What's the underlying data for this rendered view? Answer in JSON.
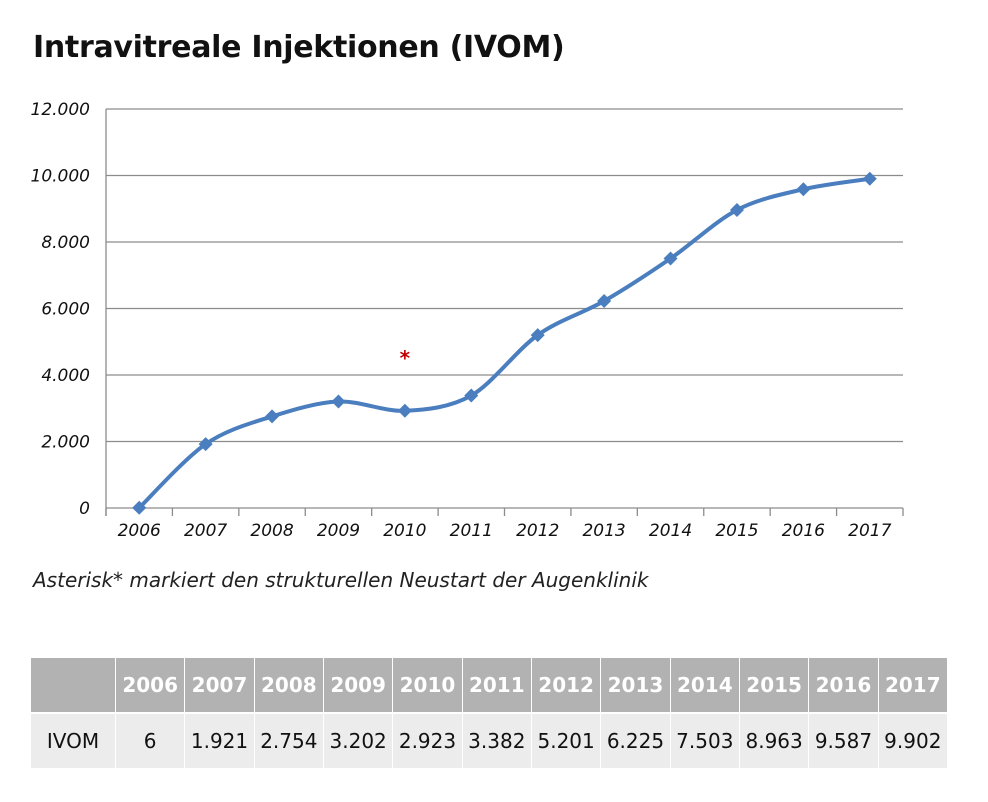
{
  "title": "Intravitreale Injektionen (IVOM)",
  "note": "Asterisk* markiert den strukturellen Neustart der Augenklinik",
  "colors": {
    "line": "#4a7ebf",
    "grid": "#8c8c8c",
    "asterisk": "#c00000",
    "table_header": "#b2b2b2",
    "table_row": "#ececec"
  },
  "chart_data": {
    "type": "line",
    "title": "Intravitreale Injektionen (IVOM)",
    "xlabel": "",
    "ylabel": "",
    "categories": [
      "2006",
      "2007",
      "2008",
      "2009",
      "2010",
      "2011",
      "2012",
      "2013",
      "2014",
      "2015",
      "2016",
      "2017"
    ],
    "series": [
      {
        "name": "IVOM",
        "values": [
          6,
          1921,
          2754,
          3202,
          2923,
          3382,
          5201,
          6225,
          7503,
          8963,
          9587,
          9902
        ]
      }
    ],
    "ylim": [
      0,
      12000
    ],
    "yticks": [
      0,
      2000,
      4000,
      6000,
      8000,
      10000,
      12000
    ],
    "ytick_labels": [
      "0",
      "2.000",
      "4.000",
      "6.000",
      "8.000",
      "10.000",
      "12.000"
    ],
    "grid": true,
    "marker": "diamond",
    "annotations": [
      {
        "text": "*",
        "category": "2010",
        "y": 4300
      }
    ]
  },
  "table": {
    "corner": "",
    "headers": [
      "2006",
      "2007",
      "2008",
      "2009",
      "2010",
      "2011",
      "2012",
      "2013",
      "2014",
      "2015",
      "2016",
      "2017"
    ],
    "rows": [
      {
        "label": "IVOM",
        "values": [
          "6",
          "1.921",
          "2.754",
          "3.202",
          "2.923",
          "3.382",
          "5.201",
          "6.225",
          "7.503",
          "8.963",
          "9.587",
          "9.902"
        ]
      }
    ]
  }
}
